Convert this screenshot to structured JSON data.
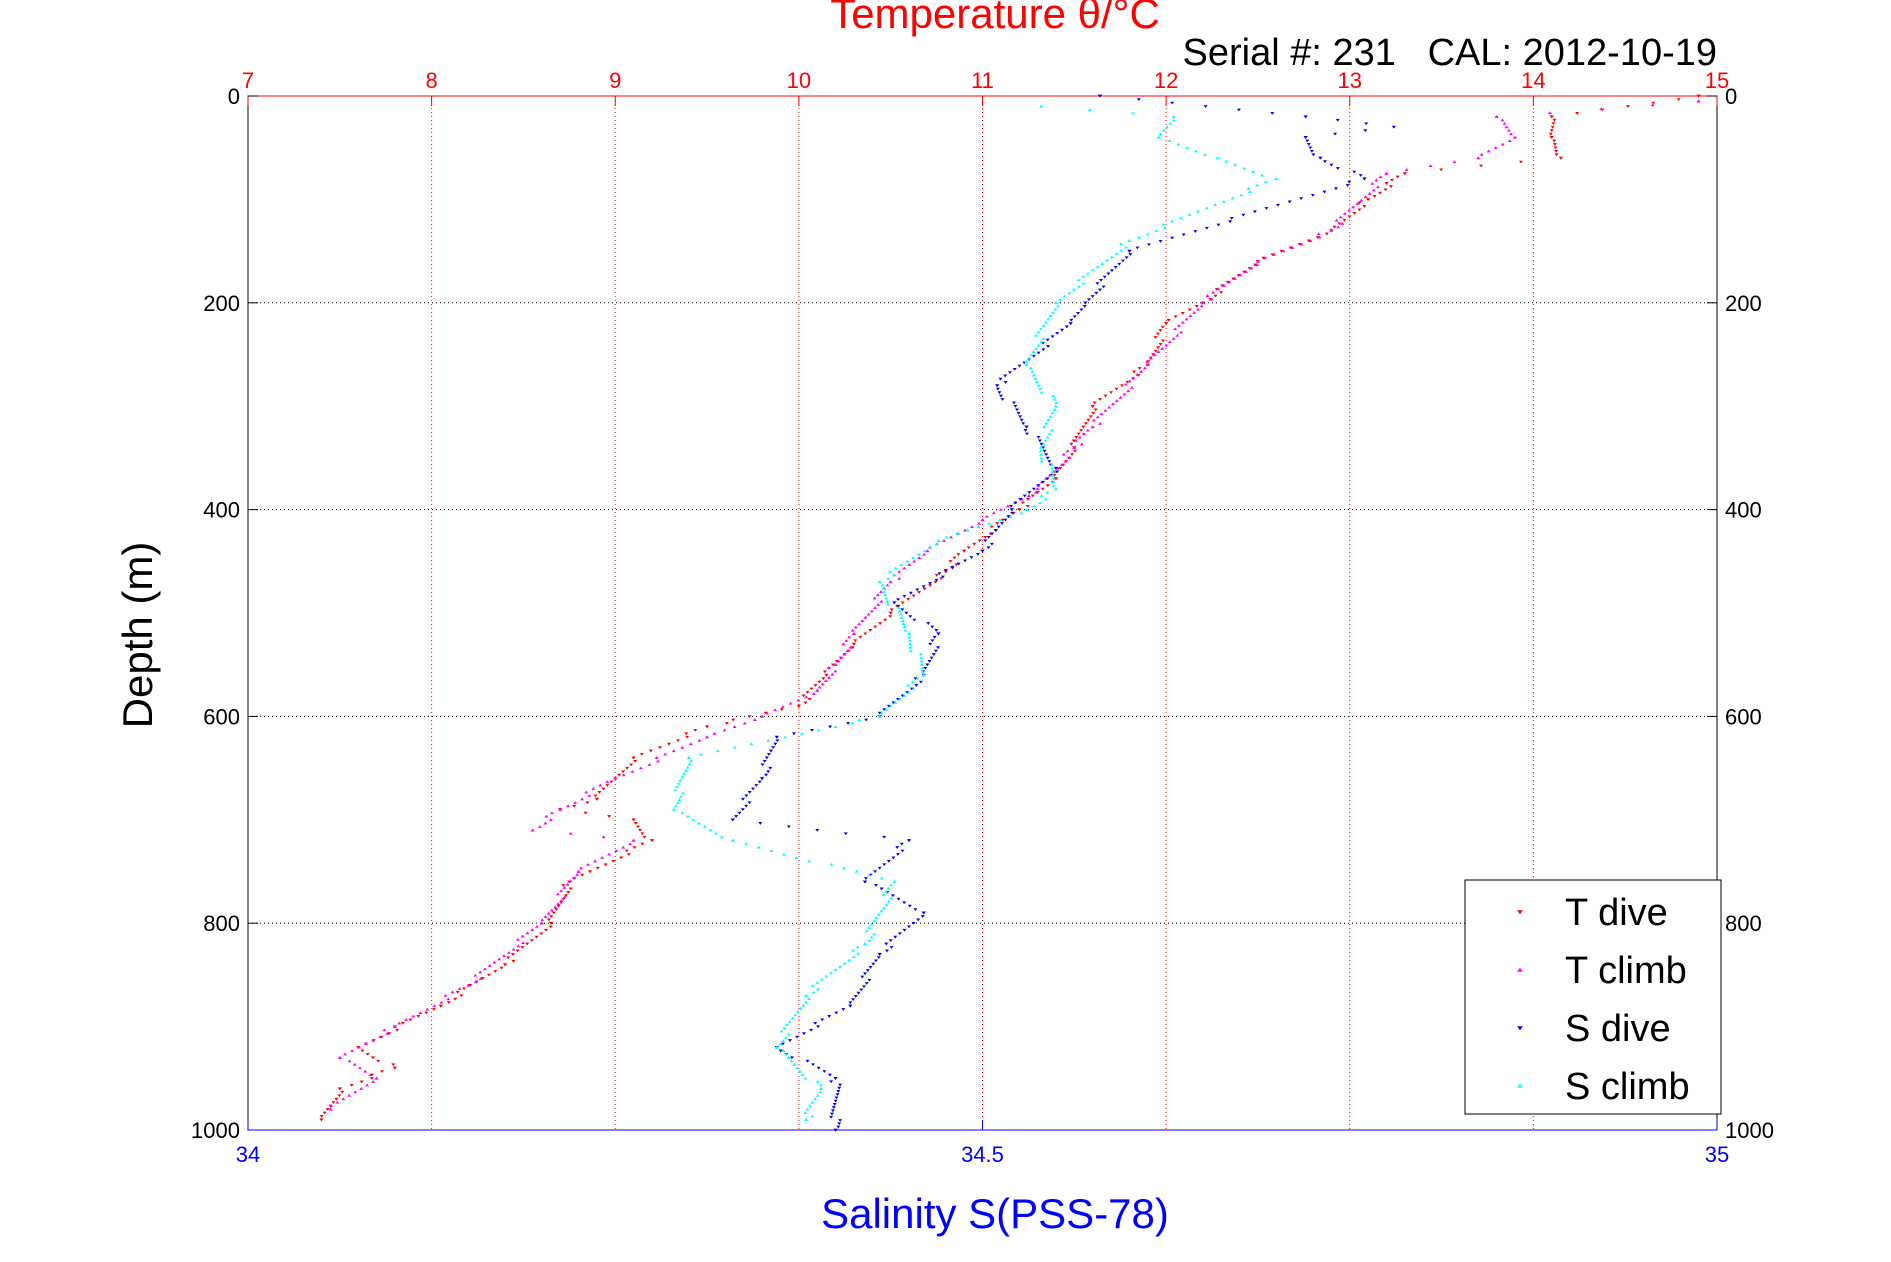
{
  "chart_data": {
    "type": "scatter",
    "title": "Temperature θ/°C",
    "subtitle": "Serial #: 231   CAL: 2012-10-19",
    "ylabel": "Depth (m)",
    "xlabel": "Salinity S(PSS-78)",
    "grid": true,
    "legend_position": "bottom-right",
    "axes": {
      "depth": {
        "range": [
          0,
          1000
        ],
        "ticks": [
          "0",
          "200",
          "400",
          "600",
          "800",
          "1000"
        ],
        "reversed": true
      },
      "temperature": {
        "range": [
          7,
          15
        ],
        "ticks": [
          "7",
          "8",
          "9",
          "10",
          "11",
          "12",
          "13",
          "14",
          "15"
        ],
        "color": "#ff0000",
        "position": "top"
      },
      "salinity": {
        "range": [
          34,
          35
        ],
        "ticks": [
          "34",
          "34.5",
          "35"
        ],
        "color": "#0000ff",
        "position": "bottom"
      }
    },
    "series": [
      {
        "name": "T dive",
        "axis": "temperature",
        "color": "#ff0000",
        "marker": "triangle-down",
        "points": [
          [
            14.9,
            0
          ],
          [
            14.1,
            20
          ],
          [
            14.1,
            40
          ],
          [
            14.15,
            60
          ],
          [
            13.3,
            75
          ],
          [
            13.1,
            100
          ],
          [
            12.9,
            130
          ],
          [
            12.5,
            160
          ],
          [
            12.2,
            200
          ],
          [
            12.0,
            220
          ],
          [
            11.9,
            260
          ],
          [
            11.6,
            300
          ],
          [
            11.5,
            340
          ],
          [
            11.4,
            370
          ],
          [
            11.2,
            400
          ],
          [
            10.9,
            440
          ],
          [
            10.8,
            460
          ],
          [
            10.5,
            500
          ],
          [
            10.3,
            530
          ],
          [
            10.15,
            560
          ],
          [
            10.0,
            590
          ],
          [
            9.5,
            610
          ],
          [
            9.1,
            640
          ],
          [
            8.9,
            680
          ],
          [
            8.7,
            690
          ],
          [
            9.1,
            700
          ],
          [
            9.2,
            720
          ],
          [
            8.75,
            760
          ],
          [
            8.65,
            800
          ],
          [
            8.4,
            840
          ],
          [
            8.05,
            880
          ],
          [
            7.6,
            920
          ],
          [
            7.8,
            940
          ],
          [
            7.5,
            960
          ],
          [
            7.4,
            990
          ]
        ]
      },
      {
        "name": "T climb",
        "axis": "temperature",
        "color": "#ff00ff",
        "marker": "triangle-up",
        "points": [
          [
            14.9,
            5
          ],
          [
            13.8,
            20
          ],
          [
            13.9,
            40
          ],
          [
            13.7,
            60
          ],
          [
            13.2,
            75
          ],
          [
            12.9,
            130
          ],
          [
            12.5,
            160
          ],
          [
            12.2,
            200
          ],
          [
            11.9,
            260
          ],
          [
            11.6,
            320
          ],
          [
            11.5,
            340
          ],
          [
            11.3,
            380
          ],
          [
            11.0,
            410
          ],
          [
            10.7,
            440
          ],
          [
            10.5,
            470
          ],
          [
            10.3,
            520
          ],
          [
            10.2,
            550
          ],
          [
            10.1,
            575
          ],
          [
            9.8,
            600
          ],
          [
            9.5,
            620
          ],
          [
            9.0,
            660
          ],
          [
            8.7,
            690
          ],
          [
            8.55,
            710
          ],
          [
            9.1,
            720
          ],
          [
            8.8,
            750
          ],
          [
            8.6,
            800
          ],
          [
            8.2,
            860
          ],
          [
            7.8,
            900
          ],
          [
            7.5,
            930
          ],
          [
            7.7,
            950
          ],
          [
            7.45,
            980
          ]
        ]
      },
      {
        "name": "S dive",
        "axis": "salinity",
        "color": "#0000ff",
        "marker": "triangle-down",
        "points": [
          [
            34.58,
            0
          ],
          [
            34.72,
            20
          ],
          [
            34.78,
            30
          ],
          [
            34.72,
            40
          ],
          [
            34.73,
            60
          ],
          [
            34.76,
            80
          ],
          [
            34.6,
            150
          ],
          [
            34.57,
            200
          ],
          [
            34.56,
            220
          ],
          [
            34.51,
            280
          ],
          [
            34.53,
            320
          ],
          [
            34.55,
            360
          ],
          [
            34.52,
            400
          ],
          [
            34.5,
            440
          ],
          [
            34.44,
            490
          ],
          [
            34.47,
            520
          ],
          [
            34.46,
            560
          ],
          [
            34.43,
            600
          ],
          [
            34.36,
            620
          ],
          [
            34.35,
            660
          ],
          [
            34.33,
            700
          ],
          [
            34.45,
            720
          ],
          [
            34.42,
            760
          ],
          [
            34.46,
            790
          ],
          [
            34.43,
            830
          ],
          [
            34.41,
            880
          ],
          [
            34.36,
            920
          ],
          [
            34.4,
            950
          ],
          [
            34.4,
            1000
          ]
        ]
      },
      {
        "name": "S climb",
        "axis": "salinity",
        "color": "#00ffff",
        "marker": "triangle-up",
        "points": [
          [
            34.54,
            10
          ],
          [
            34.63,
            20
          ],
          [
            34.62,
            40
          ],
          [
            34.66,
            60
          ],
          [
            34.7,
            80
          ],
          [
            34.6,
            140
          ],
          [
            34.55,
            200
          ],
          [
            34.53,
            260
          ],
          [
            34.55,
            300
          ],
          [
            34.54,
            340
          ],
          [
            34.55,
            380
          ],
          [
            34.53,
            400
          ],
          [
            34.47,
            430
          ],
          [
            34.43,
            470
          ],
          [
            34.45,
            520
          ],
          [
            34.46,
            560
          ],
          [
            34.43,
            600
          ],
          [
            34.3,
            640
          ],
          [
            34.29,
            690
          ],
          [
            34.33,
            720
          ],
          [
            34.44,
            760
          ],
          [
            34.42,
            820
          ],
          [
            34.38,
            870
          ],
          [
            34.36,
            920
          ],
          [
            34.39,
            960
          ],
          [
            34.38,
            990
          ]
        ]
      }
    ]
  }
}
